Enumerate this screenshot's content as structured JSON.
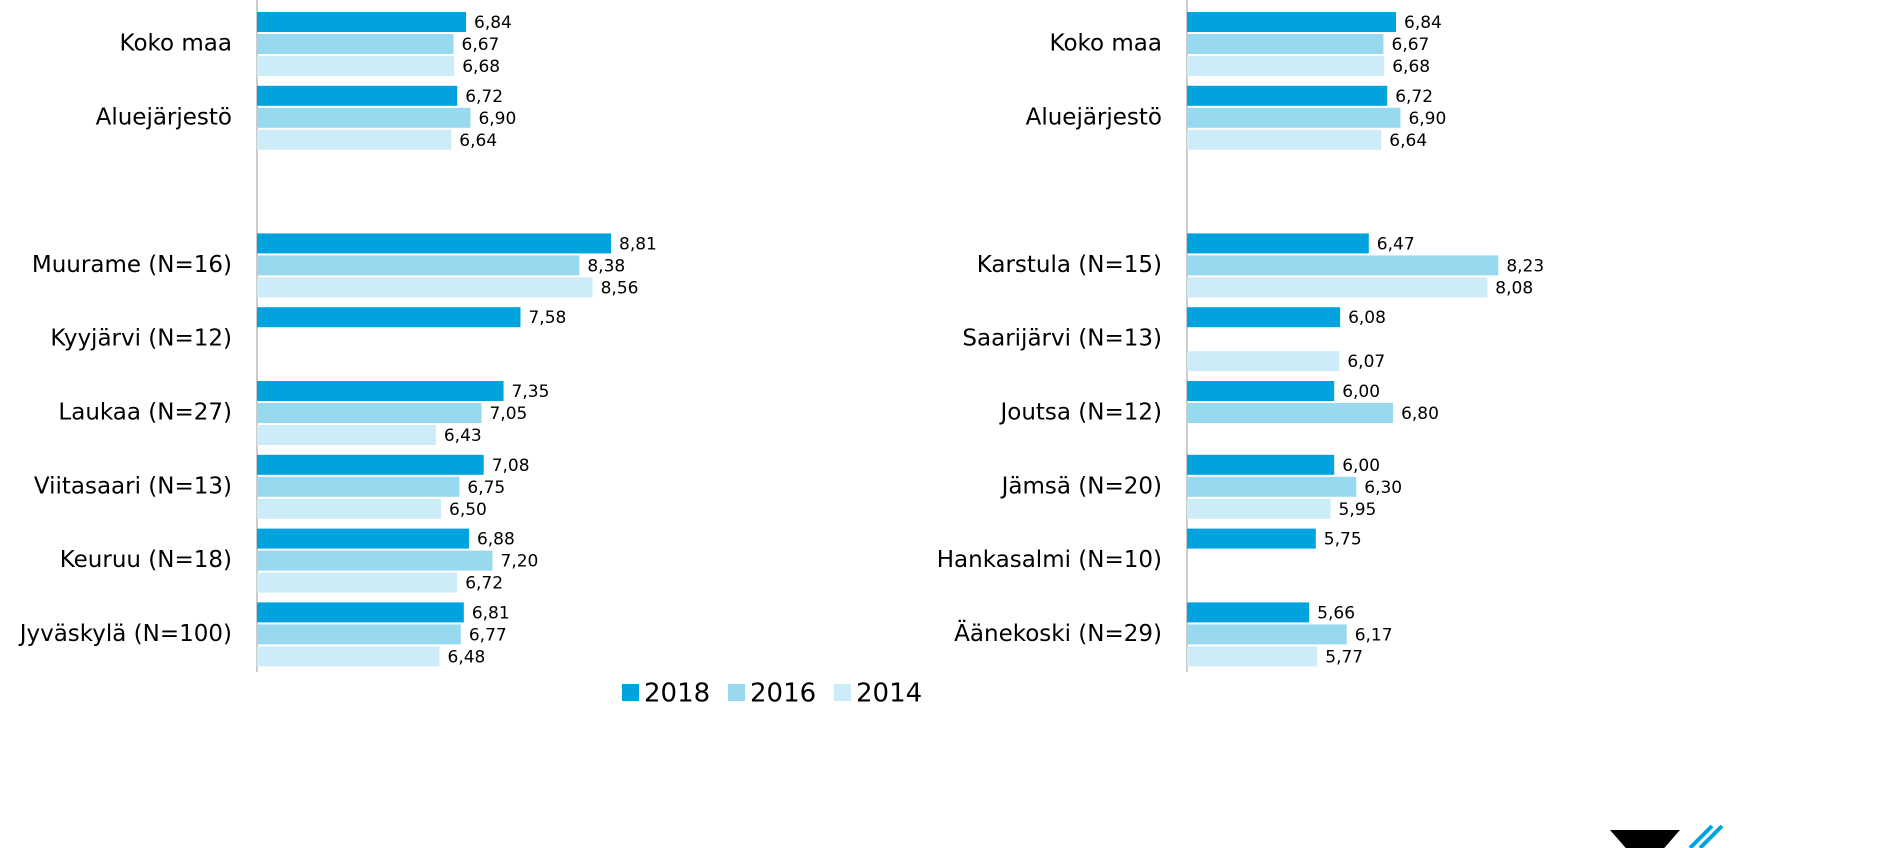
{
  "chart_data": [
    {
      "type": "barh",
      "categories": [
        "Koko maa",
        "Aluejärjestö",
        null,
        "Muurame (N=16)",
        "Kyyjärvi (N=12)",
        "Laukaa (N=27)",
        "Viitasaari (N=13)",
        "Keuruu (N=18)",
        "Jyväskylä (N=100)"
      ],
      "series": [
        {
          "name": "2018",
          "color": "#00a3dd",
          "values": [
            6.84,
            6.72,
            null,
            8.81,
            7.58,
            7.35,
            7.08,
            6.88,
            6.81
          ],
          "value_labels": [
            "6,84",
            "6,72",
            null,
            "8,81",
            "7,58",
            "7,35",
            "7,08",
            "6,88",
            "6,81"
          ]
        },
        {
          "name": "2016",
          "color": "#99d9f0",
          "values": [
            6.67,
            6.9,
            null,
            8.38,
            null,
            7.05,
            6.75,
            7.2,
            6.77
          ],
          "value_labels": [
            "6,67",
            "6,90",
            null,
            "8,38",
            null,
            "7,05",
            "6,75",
            "7,20",
            "6,77"
          ]
        },
        {
          "name": "2014",
          "color": "#ccecf8",
          "values": [
            6.68,
            6.64,
            null,
            8.56,
            null,
            6.43,
            6.5,
            6.72,
            6.48
          ],
          "value_labels": [
            "6,68",
            "6,64",
            null,
            "8,56",
            null,
            "6,43",
            "6,50",
            "6,72",
            "6,48"
          ]
        }
      ],
      "xlim": [
        4,
        10
      ]
    },
    {
      "type": "barh",
      "categories": [
        "Koko maa",
        "Aluejärjestö",
        null,
        "Karstula (N=15)",
        "Saarijärvi (N=13)",
        "Joutsa (N=12)",
        "Jämsä (N=20)",
        "Hankasalmi (N=10)",
        "Äänekoski (N=29)"
      ],
      "series": [
        {
          "name": "2018",
          "color": "#00a3dd",
          "values": [
            6.84,
            6.72,
            null,
            6.47,
            6.08,
            6.0,
            6.0,
            5.75,
            5.66
          ],
          "value_labels": [
            "6,84",
            "6,72",
            null,
            "6,47",
            "6,08",
            "6,00",
            "6,00",
            "5,75",
            "5,66"
          ]
        },
        {
          "name": "2016",
          "color": "#99d9f0",
          "values": [
            6.67,
            6.9,
            null,
            8.23,
            null,
            6.8,
            6.3,
            null,
            6.17
          ],
          "value_labels": [
            "6,67",
            "6,90",
            null,
            "8,23",
            null,
            "6,80",
            "6,30",
            null,
            "6,17"
          ]
        },
        {
          "name": "2014",
          "color": "#ccecf8",
          "values": [
            6.68,
            6.64,
            null,
            8.08,
            6.07,
            null,
            5.95,
            null,
            5.77
          ],
          "value_labels": [
            "6,68",
            "6,64",
            null,
            "8,08",
            "6,07",
            null,
            "5,95",
            null,
            "5,77"
          ]
        }
      ],
      "xlim": [
        4,
        10
      ]
    }
  ]
}
